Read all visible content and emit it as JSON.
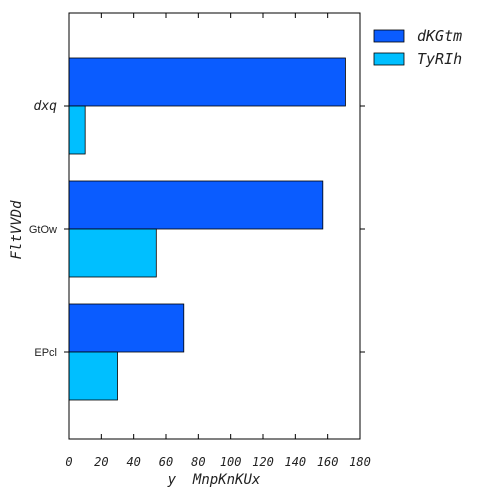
{
  "chart_data": {
    "type": "bar",
    "orientation": "horizontal",
    "categories": [
      "EPcl",
      "GtOw",
      "dxq"
    ],
    "category_label_styles": [
      "normal",
      "normal",
      "italic"
    ],
    "series": [
      {
        "name": "dKGtm",
        "values": [
          71,
          157,
          171
        ],
        "color": "#0a5cff"
      },
      {
        "name": "TyRIh",
        "values": [
          30,
          54,
          10
        ],
        "color": "#00bfff"
      }
    ],
    "xlim": [
      0,
      180
    ],
    "xticks": [
      0,
      20,
      40,
      60,
      80,
      100,
      120,
      140,
      160,
      180
    ],
    "xtick_labels": [
      "0",
      "20",
      "40",
      "60",
      "80",
      "100",
      "120",
      "140",
      "160",
      "180"
    ],
    "xlabel": "y  MnpKnKUx",
    "ylabel": "FltVVDd",
    "grid": false,
    "legend_position": "outside-top-right"
  }
}
